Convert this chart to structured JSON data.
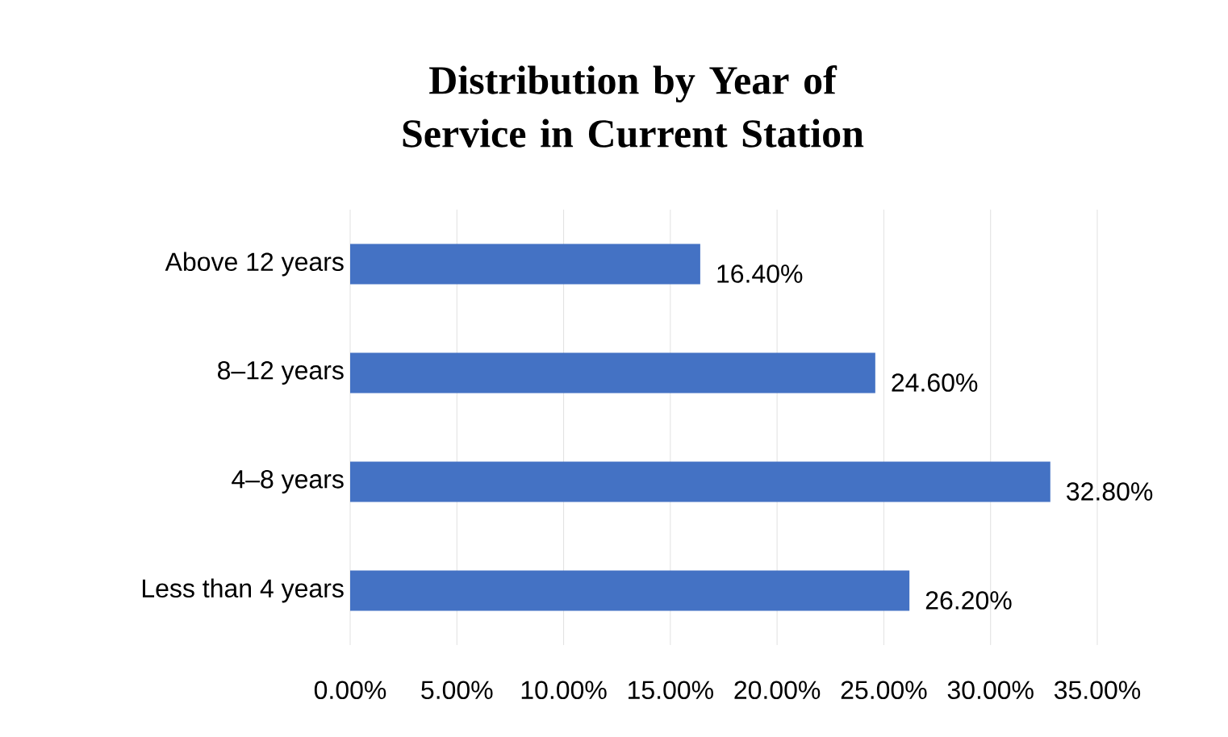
{
  "chart_data": {
    "type": "bar",
    "orientation": "horizontal",
    "title": "Distribution by Year of Service in Current Station",
    "categories": [
      "Above 12 years",
      "8–12 years",
      "4–8 years",
      "Less than 4 years"
    ],
    "values": [
      16.4,
      24.6,
      32.8,
      26.2
    ],
    "value_labels": [
      "16.40%",
      "24.60%",
      "32.80%",
      "26.20%"
    ],
    "color": "#4472c4",
    "grid": "x",
    "xlim": [
      0,
      35
    ],
    "xticks": [
      {
        "value": 0,
        "label": "0.00%"
      },
      {
        "value": 5,
        "label": "5.00%"
      },
      {
        "value": 10,
        "label": "10.00%"
      },
      {
        "value": 15,
        "label": "15.00%"
      },
      {
        "value": 20,
        "label": "20.00%"
      },
      {
        "value": 25,
        "label": "25.00%"
      },
      {
        "value": 30,
        "label": "30.00%"
      },
      {
        "value": 35,
        "label": "35.00%"
      }
    ]
  }
}
